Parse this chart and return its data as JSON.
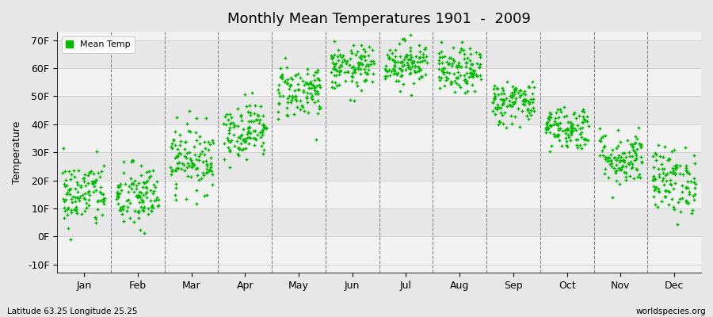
{
  "title": "Monthly Mean Temperatures 1901  -  2009",
  "ylabel": "Temperature",
  "xlabel_bottom": "Latitude 63.25 Longitude 25.25",
  "xlabel_right": "worldspecies.org",
  "yticks": [
    -10,
    0,
    10,
    20,
    30,
    40,
    50,
    60,
    70
  ],
  "ytick_labels": [
    "-10F",
    "0F",
    "10F",
    "20F",
    "30F",
    "40F",
    "50F",
    "60F",
    "70F"
  ],
  "ylim": [
    -13,
    73
  ],
  "months": [
    "Jan",
    "Feb",
    "Mar",
    "Apr",
    "May",
    "Jun",
    "Jul",
    "Aug",
    "Sep",
    "Oct",
    "Nov",
    "Dec"
  ],
  "dot_color": "#00bb00",
  "background_color": "#e8e8e8",
  "plot_bg_color": "#f2f2f2",
  "band_color_light": "#f2f2f2",
  "band_color_dark": "#e8e8e8",
  "legend_label": "Mean Temp",
  "monthly_means": [
    15,
    14,
    28,
    38,
    52,
    60,
    62,
    59,
    48,
    39,
    28,
    20
  ],
  "monthly_spreads": [
    6,
    6,
    6,
    5,
    5,
    4,
    4,
    4,
    4,
    4,
    5,
    6
  ],
  "n_points": 109,
  "seed": 42
}
